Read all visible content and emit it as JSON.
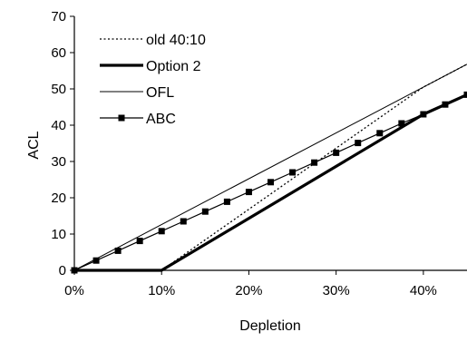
{
  "chart_data": {
    "type": "line",
    "xlabel": "Depletion",
    "ylabel": "ACL",
    "xlim": [
      0,
      0.45
    ],
    "ylim": [
      0,
      70
    ],
    "x_ticks": [
      0,
      0.1,
      0.2,
      0.3,
      0.4
    ],
    "x_tick_labels": [
      "0%",
      "10%",
      "20%",
      "30%",
      "40%"
    ],
    "y_ticks": [
      0,
      10,
      20,
      30,
      40,
      50,
      60,
      70
    ],
    "y_tick_labels": [
      "0",
      "10",
      "20",
      "30",
      "40",
      "50",
      "60",
      "70"
    ],
    "grid": false,
    "legend_position": "top-left",
    "series": [
      {
        "name": "old 40:10",
        "style": "dotted",
        "color": "#000000",
        "x": [
          0,
          0.1,
          0.4,
          0.45
        ],
        "y": [
          0,
          0,
          50.5,
          56.8
        ]
      },
      {
        "name": "Option 2",
        "style": "thick",
        "color": "#000000",
        "x": [
          0,
          0.1,
          0.4,
          0.45
        ],
        "y": [
          0,
          0,
          43,
          48.4
        ]
      },
      {
        "name": "OFL",
        "style": "thin",
        "color": "#000000",
        "x": [
          0,
          0.45
        ],
        "y": [
          0,
          56.8
        ]
      },
      {
        "name": "ABC",
        "style": "marker",
        "color": "#000000",
        "x": [
          0,
          0.025,
          0.05,
          0.075,
          0.1,
          0.125,
          0.15,
          0.175,
          0.2,
          0.225,
          0.25,
          0.275,
          0.3,
          0.325,
          0.35,
          0.375,
          0.4,
          0.425,
          0.45
        ],
        "y": [
          0,
          2.7,
          5.4,
          8.1,
          10.8,
          13.5,
          16.2,
          18.9,
          21.6,
          24.3,
          27,
          29.7,
          32.4,
          35.1,
          37.8,
          40.5,
          43,
          45.7,
          48.4
        ]
      }
    ]
  }
}
